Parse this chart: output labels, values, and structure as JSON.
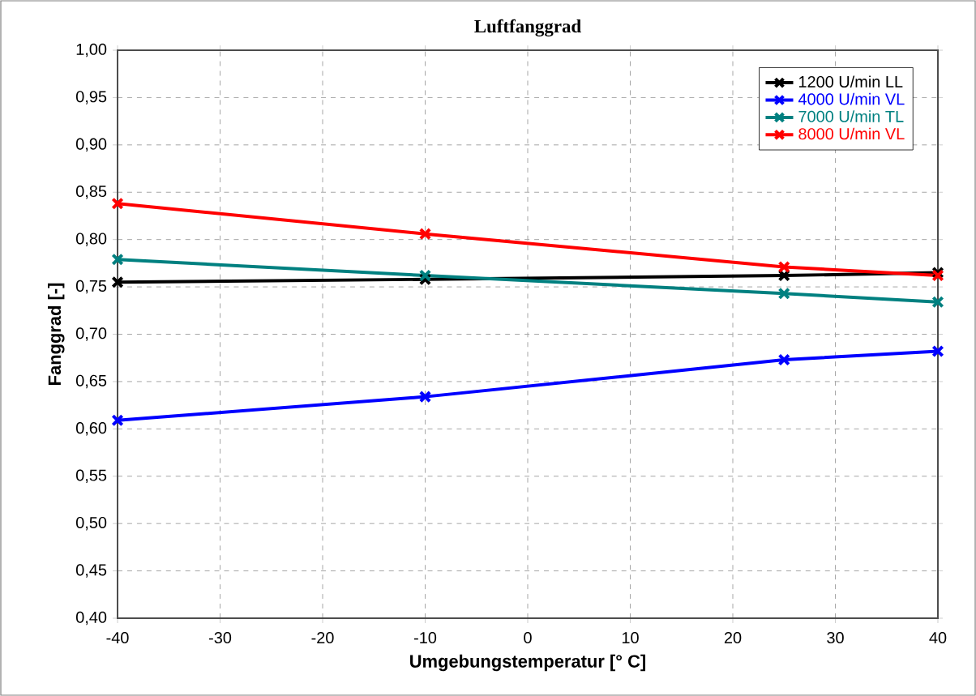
{
  "chart_data": {
    "type": "line",
    "title": "Luftfanggrad",
    "xlabel": "Umgebungstemperatur [° C]",
    "ylabel": "Fanggrad [-]",
    "x": [
      -40,
      -10,
      25,
      40
    ],
    "series": [
      {
        "name": "1200 U/min LL",
        "color": "#000000",
        "values": [
          0.755,
          0.758,
          0.762,
          0.765
        ]
      },
      {
        "name": "4000 U/min VL",
        "color": "#0000ff",
        "values": [
          0.609,
          0.634,
          0.673,
          0.682
        ]
      },
      {
        "name": "7000 U/min TL",
        "color": "#008080",
        "values": [
          0.779,
          0.762,
          0.743,
          0.734
        ]
      },
      {
        "name": "8000 U/min VL",
        "color": "#ff0000",
        "values": [
          0.838,
          0.806,
          0.771,
          0.762
        ]
      }
    ],
    "xlim": [
      -40,
      40
    ],
    "xticks": [
      -40,
      -30,
      -20,
      -10,
      0,
      10,
      20,
      30,
      40
    ],
    "ylim": [
      0.4,
      1.0
    ],
    "yticks": [
      {
        "value": 0.4,
        "label": "0,40"
      },
      {
        "value": 0.45,
        "label": "0,45"
      },
      {
        "value": 0.5,
        "label": "0,50"
      },
      {
        "value": 0.55,
        "label": "0,55"
      },
      {
        "value": 0.6,
        "label": "0,60"
      },
      {
        "value": 0.65,
        "label": "0,65"
      },
      {
        "value": 0.7,
        "label": "0,70"
      },
      {
        "value": 0.75,
        "label": "0,75"
      },
      {
        "value": 0.8,
        "label": "0,80"
      },
      {
        "value": 0.85,
        "label": "0,85"
      },
      {
        "value": 0.9,
        "label": "0,90"
      },
      {
        "value": 0.95,
        "label": "0,95"
      },
      {
        "value": 1.0,
        "label": "1,00"
      }
    ],
    "grid": true,
    "legend": "top right",
    "marker": "cross",
    "line_style": "solid"
  }
}
